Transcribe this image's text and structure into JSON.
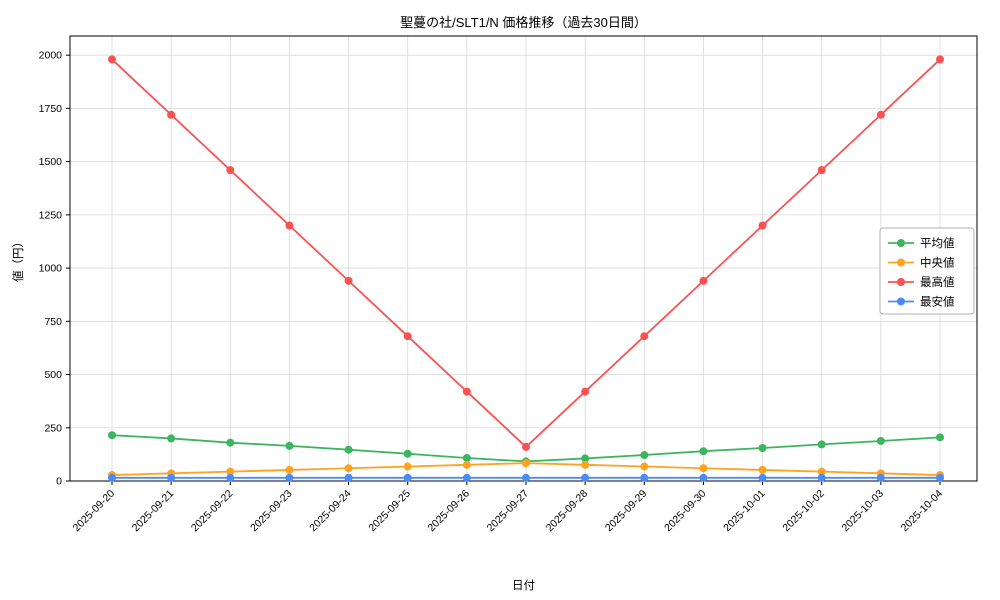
{
  "chart_data": {
    "type": "line",
    "title": "聖蔓の社/SLT1/N 価格推移（過去30日間）",
    "xlabel": "日付",
    "ylabel": "値（円）",
    "ylim": [
      0,
      2090
    ],
    "yticks": [
      0,
      250,
      500,
      750,
      1000,
      1250,
      1500,
      1750,
      2000
    ],
    "grid": true,
    "legend_position": "center right",
    "colors": {
      "grid": "#d9d9d9",
      "axis": "#000000",
      "background": "#ffffff"
    },
    "categories": [
      "2025-09-20",
      "2025-09-21",
      "2025-09-22",
      "2025-09-23",
      "2025-09-24",
      "2025-09-25",
      "2025-09-26",
      "2025-09-27",
      "2025-09-28",
      "2025-09-29",
      "2025-09-30",
      "2025-10-01",
      "2025-10-02",
      "2025-10-03",
      "2025-10-04"
    ],
    "series": [
      {
        "id": "average",
        "name": "平均値",
        "color": "#3cb55e",
        "values": [
          215,
          200,
          180,
          165,
          147,
          128,
          108,
          92,
          106,
          122,
          140,
          155,
          172,
          188,
          205
        ]
      },
      {
        "id": "median",
        "name": "中央値",
        "color": "#ffa21f",
        "values": [
          28,
          36,
          44,
          52,
          60,
          68,
          76,
          84,
          76,
          68,
          60,
          52,
          44,
          36,
          28
        ]
      },
      {
        "id": "max",
        "name": "最高値",
        "color": "#fa5252",
        "values": [
          1980,
          1720,
          1460,
          1200,
          940,
          680,
          420,
          160,
          420,
          680,
          940,
          1200,
          1460,
          1720,
          1980
        ]
      },
      {
        "id": "min",
        "name": "最安値",
        "color": "#4c8bf5",
        "values": [
          15,
          15,
          15,
          15,
          15,
          15,
          15,
          15,
          15,
          15,
          15,
          15,
          15,
          15,
          15
        ]
      }
    ]
  }
}
